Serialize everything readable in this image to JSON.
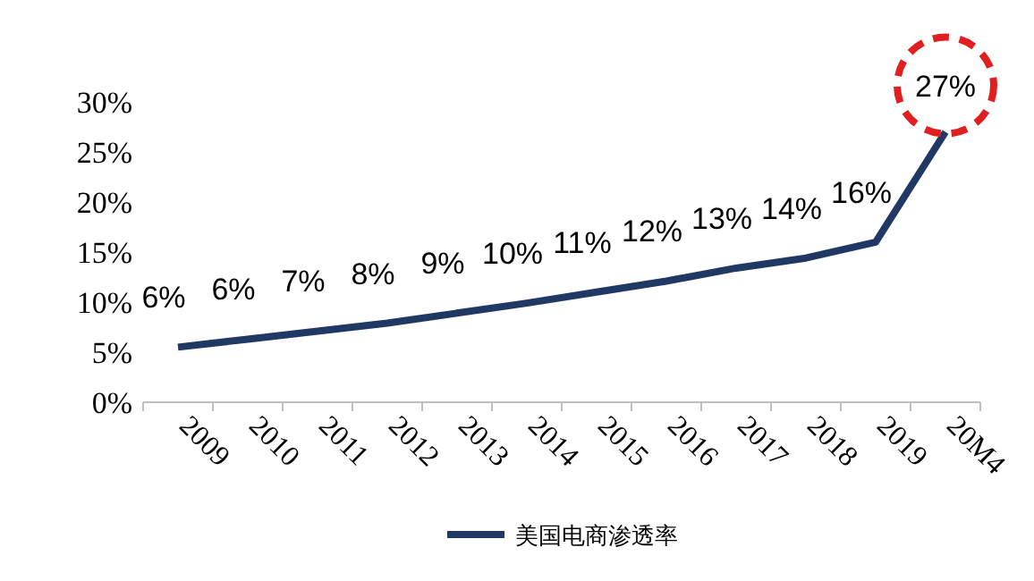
{
  "chart_data": {
    "type": "line",
    "categories": [
      "2009",
      "2010",
      "2011",
      "2012",
      "2013",
      "2014",
      "2015",
      "2016",
      "2017",
      "2018",
      "2019",
      "20M4"
    ],
    "series": [
      {
        "name": "美国电商渗透率",
        "color": "#1f3864",
        "values": [
          5.5,
          6.3,
          7.1,
          7.9,
          8.9,
          9.9,
          11,
          12.1,
          13.4,
          14.4,
          16,
          27
        ],
        "value_labels": [
          "6%",
          "6%",
          "7%",
          "8%",
          "9%",
          "10%",
          "11%",
          "12%",
          "13%",
          "14%",
          "16%",
          "27%"
        ]
      }
    ],
    "ylim": [
      0,
      30
    ],
    "yticks": [
      {
        "value": 0,
        "label": "0%"
      },
      {
        "value": 5,
        "label": "5%"
      },
      {
        "value": 10,
        "label": "10%"
      },
      {
        "value": 15,
        "label": "15%"
      },
      {
        "value": 20,
        "label": "20%"
      },
      {
        "value": 25,
        "label": "25%"
      },
      {
        "value": 30,
        "label": "30%"
      }
    ],
    "legend": "bottom",
    "grid": false
  }
}
